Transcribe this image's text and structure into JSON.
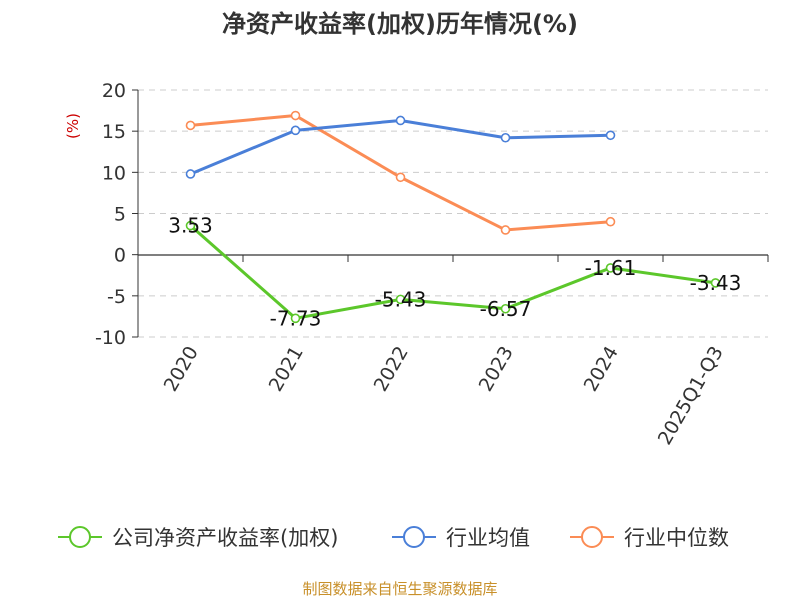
{
  "chart_data": {
    "type": "line",
    "title": "净资产收益率(加权)历年情况(%)",
    "ylabel": "(%)",
    "xlabel": "",
    "categories": [
      "2020",
      "2021",
      "2022",
      "2023",
      "2024",
      "2025Q1-Q3"
    ],
    "ylim": [
      -10,
      20
    ],
    "yticks": [
      20,
      15,
      10,
      5,
      0,
      -5,
      -10
    ],
    "grid": true,
    "legend_position": "bottom",
    "series": [
      {
        "name": "公司净资产收益率(加权)",
        "color": "#5cc72b",
        "values": [
          3.53,
          -7.73,
          -5.43,
          -6.57,
          -1.61,
          -3.43
        ],
        "labels": [
          "3.53",
          "-7.73",
          "-5.43",
          "-6.57",
          "-1.61",
          "-3.43"
        ]
      },
      {
        "name": "行业均值",
        "color": "#4a7fd8",
        "values": [
          9.8,
          15.1,
          16.3,
          14.2,
          14.5,
          null
        ]
      },
      {
        "name": "行业中位数",
        "color": "#fb8c55",
        "values": [
          15.7,
          16.9,
          9.4,
          3.0,
          4.0,
          null
        ]
      }
    ]
  },
  "footer": "制图数据来自恒生聚源数据库"
}
